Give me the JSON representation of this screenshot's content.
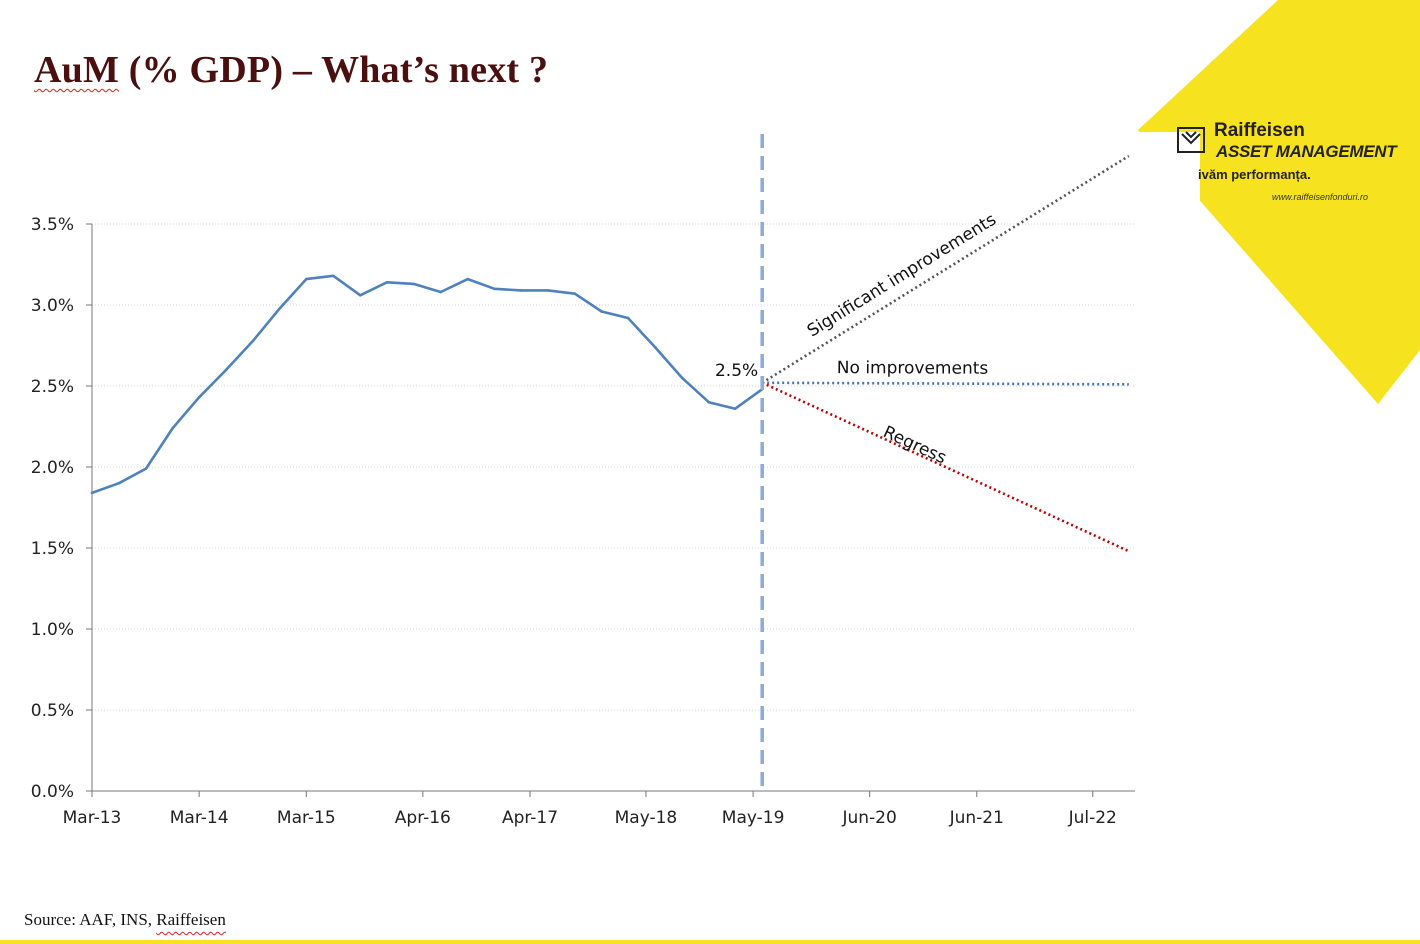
{
  "slide": {
    "title_first": "AuM",
    "title_rest": " (% GDP) – What’s next ?",
    "source_prefix": "Source: AAF, INS, ",
    "source_last": "Raiffeisen"
  },
  "logo": {
    "name": "Raiffeisen",
    "subtitle": "ASSET MANAGEMENT",
    "slogan": "ivăm performanța.",
    "url": "www.raiffeisenfonduri.ro",
    "brand_color": "#f7e21f"
  },
  "chart_data": {
    "type": "line",
    "ylim": [
      0,
      3.5
    ],
    "y_ticks": [
      0,
      0.5,
      1.0,
      1.5,
      2.0,
      2.5,
      3.0,
      3.5
    ],
    "y_tick_labels": [
      "0.0%",
      "0.5%",
      "1.0%",
      "1.5%",
      "2.0%",
      "2.5%",
      "3.0%",
      "3.5%"
    ],
    "x_ticks": [
      "2013-03",
      "2014-03",
      "2015-03",
      "2016-04",
      "2017-04",
      "2018-05",
      "2019-05",
      "2020-06",
      "2021-06",
      "2022-07"
    ],
    "x_tick_labels": [
      "Mar-13",
      "Mar-14",
      "Mar-15",
      "Apr-16",
      "Apr-17",
      "May-18",
      "May-19",
      "Jun-20",
      "Jun-21",
      "Jul-22"
    ],
    "grid": true,
    "series": [
      {
        "color": "#4f81bd",
        "points": [
          {
            "x": "2013-03",
            "y": 1.84
          },
          {
            "x": "2013-06",
            "y": 1.9
          },
          {
            "x": "2013-09",
            "y": 1.99
          },
          {
            "x": "2013-12",
            "y": 2.24
          },
          {
            "x": "2014-03",
            "y": 2.43
          },
          {
            "x": "2014-06",
            "y": 2.6
          },
          {
            "x": "2014-09",
            "y": 2.78
          },
          {
            "x": "2014-12",
            "y": 2.98
          },
          {
            "x": "2015-03",
            "y": 3.16
          },
          {
            "x": "2015-06",
            "y": 3.18
          },
          {
            "x": "2015-09",
            "y": 3.06
          },
          {
            "x": "2015-12",
            "y": 3.14
          },
          {
            "x": "2016-03",
            "y": 3.13
          },
          {
            "x": "2016-06",
            "y": 3.08
          },
          {
            "x": "2016-09",
            "y": 3.16
          },
          {
            "x": "2016-12",
            "y": 3.1
          },
          {
            "x": "2017-03",
            "y": 3.09
          },
          {
            "x": "2017-06",
            "y": 3.09
          },
          {
            "x": "2017-09",
            "y": 3.07
          },
          {
            "x": "2017-12",
            "y": 2.96
          },
          {
            "x": "2018-03",
            "y": 2.92
          },
          {
            "x": "2018-06",
            "y": 2.74
          },
          {
            "x": "2018-09",
            "y": 2.55
          },
          {
            "x": "2018-12",
            "y": 2.4
          },
          {
            "x": "2019-03",
            "y": 2.36
          },
          {
            "x": "2019-06",
            "y": 2.48
          }
        ]
      }
    ],
    "marker": {
      "x": "2019-06",
      "label": "2.5%",
      "color": "#8eaadb"
    },
    "scenarios": [
      {
        "name": "Significant improvements",
        "color": "#555555",
        "start": {
          "x": "2019-06",
          "y": 2.52
        },
        "end": {
          "x": "2022-11",
          "y": 3.92
        }
      },
      {
        "name": "No improvements",
        "color": "#4472c4",
        "start": {
          "x": "2019-06",
          "y": 2.52
        },
        "end": {
          "x": "2022-11",
          "y": 2.51
        }
      },
      {
        "name": "Regress",
        "color": "#c00000",
        "start": {
          "x": "2019-06",
          "y": 2.52
        },
        "end": {
          "x": "2022-11",
          "y": 1.48
        }
      }
    ]
  }
}
